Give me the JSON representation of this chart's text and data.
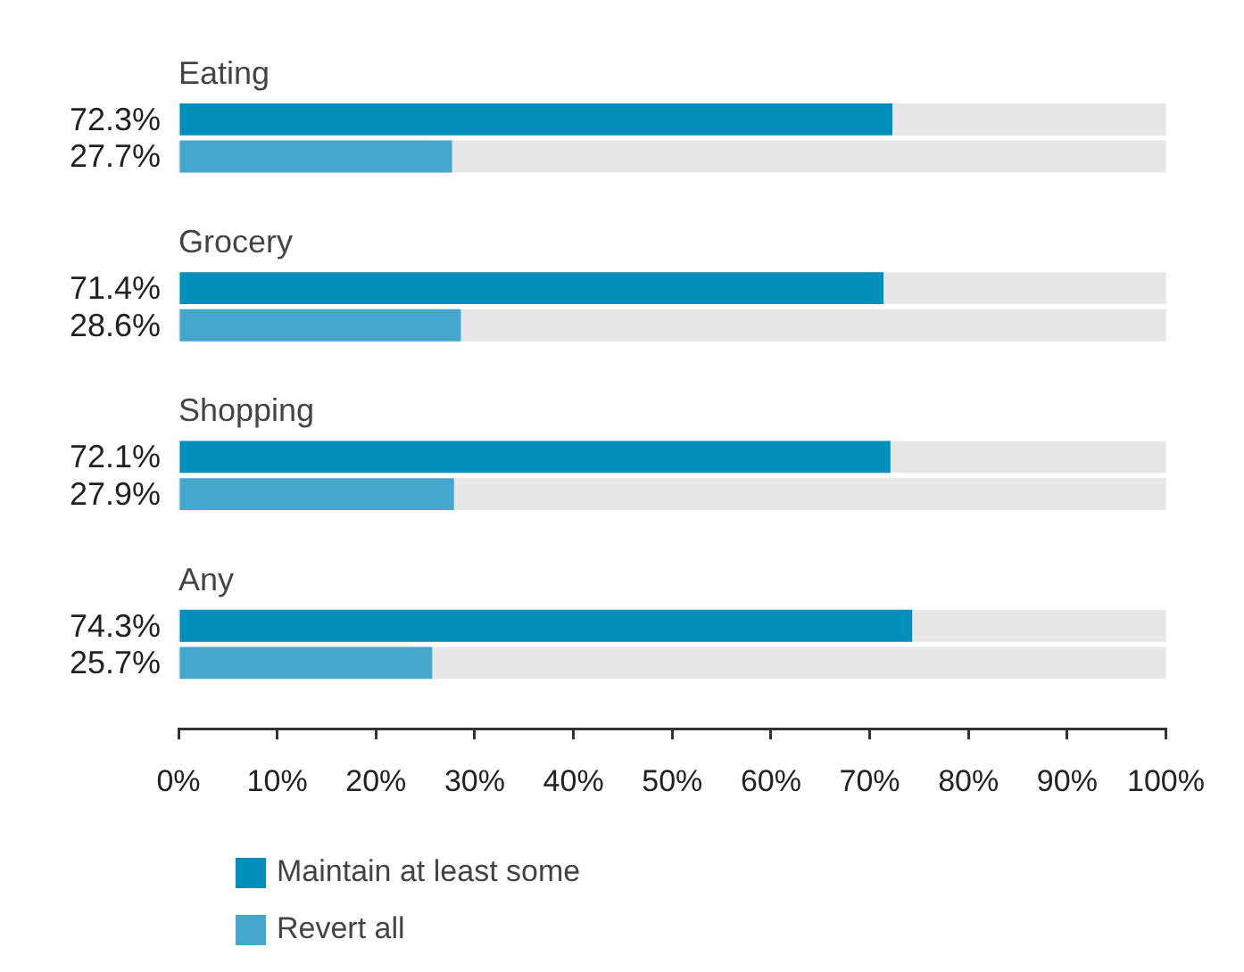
{
  "chart_data": {
    "type": "bar",
    "orientation": "horizontal",
    "categories": [
      "Eating",
      "Grocery",
      "Shopping",
      "Any"
    ],
    "series": [
      {
        "name": "Maintain at least some",
        "color": "#008fba",
        "values": [
          72.3,
          71.4,
          72.1,
          74.3
        ]
      },
      {
        "name": "Revert all",
        "color": "#46a6cb",
        "values": [
          27.7,
          28.6,
          27.9,
          25.7
        ]
      }
    ],
    "xlim": [
      0,
      100
    ],
    "xticks": [
      {
        "value": 0,
        "label": "0%"
      },
      {
        "value": 10,
        "label": "10%"
      },
      {
        "value": 20,
        "label": "20%"
      },
      {
        "value": 30,
        "label": "30%"
      },
      {
        "value": 40,
        "label": "40%"
      },
      {
        "value": 50,
        "label": "50%"
      },
      {
        "value": 60,
        "label": "60%"
      },
      {
        "value": 70,
        "label": "70%"
      },
      {
        "value": 80,
        "label": "80%"
      },
      {
        "value": 90,
        "label": "90%"
      },
      {
        "value": 100,
        "label": "100%"
      }
    ],
    "value_labels": [
      [
        "72.3%",
        "71.4%",
        "72.1%",
        "74.3%"
      ],
      [
        "27.7%",
        "28.6%",
        "27.9%",
        "25.7%"
      ]
    ],
    "grid": false,
    "legend": "bottom left"
  }
}
